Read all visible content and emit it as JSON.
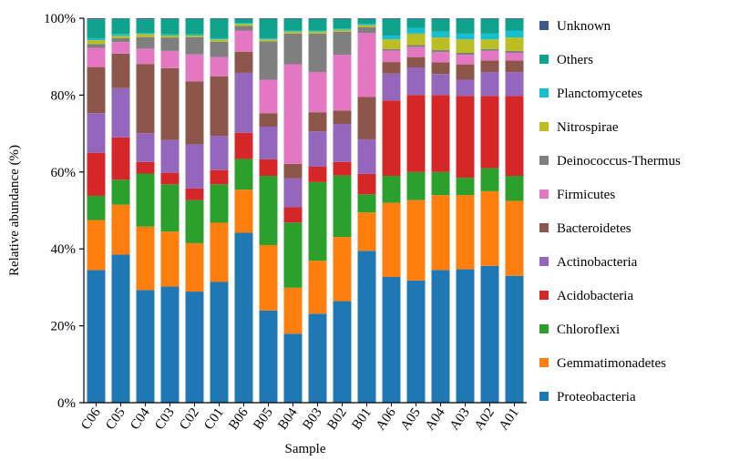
{
  "chart_data": {
    "type": "bar",
    "stacked": true,
    "xlabel": "Sample",
    "ylabel": "Relative abundance (%)",
    "ylim": [
      0,
      100
    ],
    "y_ticks": [
      "0%",
      "20%",
      "40%",
      "60%",
      "80%",
      "100%"
    ],
    "legend_position": "right",
    "categories": [
      "C06",
      "C05",
      "C04",
      "C03",
      "C02",
      "C01",
      "B06",
      "B05",
      "B04",
      "B03",
      "B02",
      "B01",
      "A06",
      "A05",
      "A04",
      "A03",
      "A02",
      "A01"
    ],
    "series": [
      {
        "name": "Proteobacteria",
        "color": "#1f77b4",
        "values": [
          34.5,
          38.5,
          29.3,
          30.2,
          28.9,
          31.4,
          44.2,
          24.0,
          18.0,
          23.2,
          26.4,
          39.5,
          32.7,
          31.8,
          34.5,
          34.7,
          35.6,
          33.0
        ]
      },
      {
        "name": "Gemmatimonadetes",
        "color": "#ff7f0e",
        "values": [
          13.0,
          13.0,
          16.5,
          14.3,
          12.6,
          15.4,
          11.2,
          17.0,
          12.0,
          13.8,
          16.7,
          10.0,
          19.3,
          20.9,
          19.5,
          19.3,
          19.4,
          19.5
        ]
      },
      {
        "name": "Chloroflexi",
        "color": "#2ca02c",
        "values": [
          6.3,
          6.5,
          13.8,
          12.3,
          11.2,
          10.0,
          8.0,
          18.0,
          17.0,
          20.5,
          16.0,
          4.7,
          7.0,
          7.3,
          6.0,
          4.5,
          6.0,
          6.5
        ]
      },
      {
        "name": "Acidobacteria",
        "color": "#d62728",
        "values": [
          11.2,
          11.0,
          3.0,
          3.0,
          3.0,
          3.7,
          6.8,
          4.3,
          4.0,
          4.0,
          3.5,
          5.3,
          19.6,
          20.0,
          20.0,
          21.3,
          18.8,
          20.8
        ]
      },
      {
        "name": "Actinobacteria",
        "color": "#9467bd",
        "values": [
          10.3,
          12.8,
          7.5,
          8.5,
          11.5,
          8.9,
          15.6,
          8.5,
          7.5,
          9.2,
          9.9,
          9.0,
          7.0,
          7.2,
          5.5,
          4.2,
          6.2,
          6.2
        ]
      },
      {
        "name": "Bacteroidetes",
        "color": "#8c564b",
        "values": [
          12.0,
          9.0,
          18.0,
          18.7,
          16.4,
          15.5,
          5.5,
          3.5,
          3.8,
          5.0,
          3.5,
          11.0,
          3.0,
          2.7,
          3.0,
          4.0,
          3.0,
          3.0
        ]
      },
      {
        "name": "Firmicutes",
        "color": "#e377c2",
        "values": [
          5.0,
          3.0,
          4.0,
          4.5,
          7.0,
          5.0,
          5.5,
          8.7,
          26.0,
          10.5,
          14.5,
          16.7,
          3.0,
          2.6,
          2.7,
          2.5,
          2.5,
          2.0
        ]
      },
      {
        "name": "Deinococcus-Thermus",
        "color": "#7f7f7f",
        "values": [
          1.0,
          1.0,
          3.0,
          3.5,
          4.5,
          4.0,
          1.2,
          10.0,
          8.0,
          10.0,
          6.0,
          1.5,
          0.4,
          0.5,
          0.5,
          0.5,
          0.5,
          0.5
        ]
      },
      {
        "name": "Nitrospirae",
        "color": "#bcbd22",
        "values": [
          1.0,
          0.6,
          0.8,
          0.5,
          0.4,
          0.6,
          0.5,
          0.5,
          0.5,
          0.5,
          0.5,
          0.5,
          2.5,
          3.0,
          3.3,
          3.5,
          2.5,
          3.5
        ]
      },
      {
        "name": "Planctomycetes",
        "color": "#17becf",
        "values": [
          0.5,
          0.5,
          0.3,
          0.3,
          0.3,
          0.3,
          0.3,
          0.3,
          0.3,
          0.3,
          0.3,
          0.3,
          1.0,
          1.5,
          1.5,
          1.5,
          1.5,
          1.8
        ]
      },
      {
        "name": "Others",
        "color": "#0fa38e",
        "values": [
          4.9,
          4.0,
          3.5,
          4.0,
          4.0,
          5.0,
          1.0,
          5.0,
          3.0,
          3.0,
          2.5,
          1.3,
          4.3,
          2.3,
          3.3,
          3.8,
          3.8,
          3.0
        ]
      },
      {
        "name": "Unknown",
        "color": "#3b5a8a",
        "values": [
          0.3,
          0.1,
          0.3,
          0.2,
          0.2,
          0.2,
          0.2,
          0.2,
          0.2,
          0.2,
          0.2,
          0.2,
          0.2,
          0.2,
          0.2,
          0.2,
          0.2,
          0.2
        ]
      }
    ]
  }
}
